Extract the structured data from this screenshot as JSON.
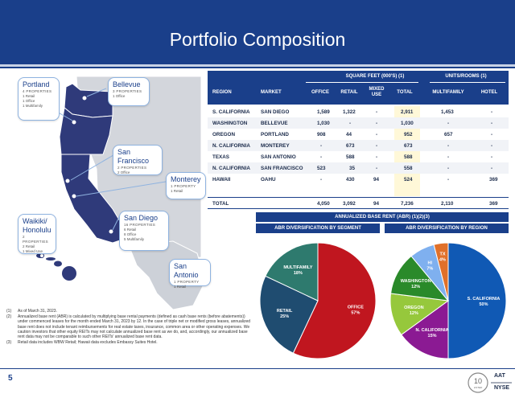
{
  "header": {
    "title": "Portfolio Composition"
  },
  "callouts": [
    {
      "name": "Portland",
      "props": "4 PROPERTIES",
      "lines": [
        "1 Retail",
        "1 Office",
        "1 Multifamily"
      ]
    },
    {
      "name": "Bellevue",
      "props": "3 PROPERTIES",
      "lines": [
        "1 Office"
      ]
    },
    {
      "name": "San Francisco",
      "props": "2 PROPERTIES",
      "lines": [
        "2 Office"
      ]
    },
    {
      "name": "Monterey",
      "props": "1 PROPERTY",
      "lines": [
        "1 Retail"
      ]
    },
    {
      "name": "Waikiki/ Honolulu",
      "props": "2 PROPERTIES",
      "lines": [
        "2 Retail",
        "1 Mixed Use"
      ]
    },
    {
      "name": "San Diego",
      "props": "16 PROPERTIES",
      "lines": [
        "6 Retail",
        "8 Office",
        "5 Multifamily"
      ]
    },
    {
      "name": "San Antonio",
      "props": "1 PROPERTY",
      "lines": [
        "1 Retail"
      ]
    }
  ],
  "table": {
    "group_sqft": "SQUARE FEET (000'S) (1)",
    "group_units": "UNITS/ROOMS (1)",
    "columns": [
      "REGION",
      "MARKET",
      "OFFICE",
      "RETAIL",
      "MIXED USE",
      "TOTAL",
      "MULTIFAMILY",
      "HOTEL"
    ],
    "rows": [
      [
        "S. CALIFORNIA",
        "SAN DIEGO",
        "1,589",
        "1,322",
        "-",
        "2,911",
        "1,453",
        "-"
      ],
      [
        "WASHINGTON",
        "BELLEVUE",
        "1,030",
        "-",
        "-",
        "1,030",
        "-",
        "-"
      ],
      [
        "OREGON",
        "PORTLAND",
        "908",
        "44",
        "-",
        "952",
        "657",
        "-"
      ],
      [
        "N. CALIFORNIA",
        "MONTEREY",
        "-",
        "673",
        "-",
        "673",
        "-",
        "-"
      ],
      [
        "TEXAS",
        "SAN ANTONIO",
        "-",
        "588",
        "-",
        "588",
        "-",
        "-"
      ],
      [
        "N. CALIFORNIA",
        "SAN FRANCISCO",
        "523",
        "35",
        "-",
        "558",
        "-",
        "-"
      ],
      [
        "HAWAII",
        "OAHU",
        "-",
        "430",
        "94",
        "524",
        "-",
        "369"
      ]
    ],
    "total": [
      "TOTAL",
      "",
      "4,050",
      "3,092",
      "94",
      "7,236",
      "2,110",
      "369"
    ]
  },
  "abr": {
    "title": "ANNUALIZED BASE RENT (ABR) (1)(2)(3)",
    "segment_title": "ABR DIVERSIFICATION BY SEGMENT",
    "region_title": "ABR DIVERSIFICATION BY REGION"
  },
  "chart_data": [
    {
      "type": "pie",
      "title": "ABR DIVERSIFICATION BY SEGMENT",
      "categories": [
        "OFFICE",
        "RETAIL",
        "MULTIFAMILY"
      ],
      "values": [
        57,
        25,
        18
      ],
      "colors": [
        "#c0161f",
        "#1f4c70",
        "#2e7a6e"
      ]
    },
    {
      "type": "pie",
      "title": "ABR DIVERSIFICATION BY REGION",
      "categories": [
        "S. CALIFORNIA",
        "N. CALIFORNIA",
        "OREGON",
        "WASHINGTON",
        "HI",
        "TX"
      ],
      "values": [
        50,
        15,
        12,
        12,
        7,
        4
      ],
      "colors": [
        "#1059b4",
        "#8b1a93",
        "#96c83c",
        "#2a8a2a",
        "#7fb0ef",
        "#e0702a"
      ]
    }
  ],
  "notes": [
    {
      "num": "(1)",
      "text": "As of March 31, 2023."
    },
    {
      "num": "(2)",
      "text": "Annualized base rent (ABR) is calculated by multiplying base rental payments (defined as cash base rents (before abatements)) under commenced leases for the month ended March 31, 2023 by 12. In the case of triple net or modified gross leases, annualized base rent does not include tenant reimbursements for real estate taxes, insurance, common area or other operating expenses. We caution investors that other equity REITs may not calculate annualized base rent as we do, and, accordingly, our annualized base rent data may not be comparable to such other REITs' annualized base rent data."
    },
    {
      "num": "(3)",
      "text": "Retail data includes WBW Retail; Hawaii data excludes Embassy Suites Hotel."
    }
  ],
  "footer": {
    "page_number": "5",
    "ticker_a": "AAT",
    "ticker_b": "NYSE",
    "logo_num": "10",
    "logo_sub": "LISTED"
  }
}
